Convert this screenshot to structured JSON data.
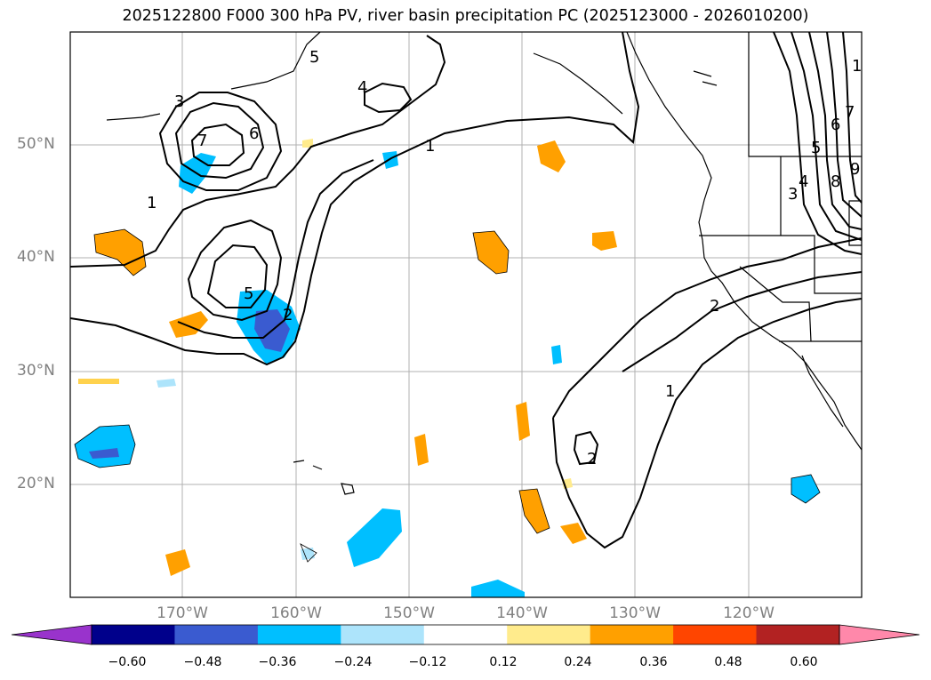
{
  "title": "2025122800 F000 300 hPa PV, river basin precipitation PC (2025123000 - 2026010200)",
  "map": {
    "lat_labels": [
      "50°N",
      "40°N",
      "30°N",
      "20°N"
    ],
    "lon_labels": [
      "170°W",
      "160°W",
      "150°W",
      "140°W",
      "130°W",
      "120°W"
    ],
    "contour_labels": [
      "1",
      "2",
      "3",
      "4",
      "5",
      "6",
      "7",
      "1",
      "1",
      "2",
      "2",
      "5",
      "3",
      "4",
      "5",
      "6",
      "7",
      "8",
      "9",
      "1"
    ],
    "border_color": "#000000",
    "grid_color": "#b0b0b0"
  },
  "colorbar": {
    "ticks": [
      "−0.60",
      "−0.48",
      "−0.36",
      "−0.24",
      "−0.12",
      "0.12",
      "0.24",
      "0.36",
      "0.48",
      "0.60"
    ],
    "colors": [
      "#9933cc",
      "#00008b",
      "#3a5bd0",
      "#00bfff",
      "#ade4fb",
      "#ffffff",
      "#ffeb8c",
      "#ffa000",
      "#ff4500",
      "#b22222",
      "#ff88aa"
    ]
  }
}
